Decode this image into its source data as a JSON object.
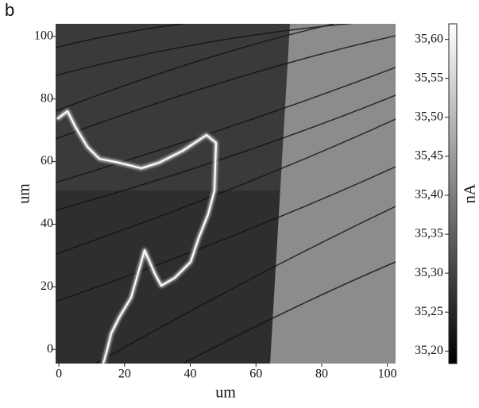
{
  "chart_data": {
    "type": "heatmap",
    "panel_label": "b",
    "xlabel": "um",
    "ylabel": "um",
    "xlim": [
      -1,
      102.5
    ],
    "ylim": [
      -4.5,
      104
    ],
    "xticks": [
      0,
      20,
      40,
      60,
      80,
      100
    ],
    "yticks": [
      0,
      20,
      40,
      60,
      80,
      100
    ],
    "colorbar": {
      "label": "nA",
      "lim": [
        35.184,
        35.62
      ],
      "ticks": [
        {
          "value": 35.2,
          "label": "35,20"
        },
        {
          "value": 35.25,
          "label": "35,25"
        },
        {
          "value": 35.3,
          "label": "35,30"
        },
        {
          "value": 35.35,
          "label": "35,35"
        },
        {
          "value": 35.4,
          "label": "35,40"
        },
        {
          "value": 35.45,
          "label": "35,45"
        },
        {
          "value": 35.5,
          "label": "35,50"
        },
        {
          "value": 35.55,
          "label": "35,55"
        },
        {
          "value": 35.6,
          "label": "35,60"
        }
      ]
    }
  }
}
